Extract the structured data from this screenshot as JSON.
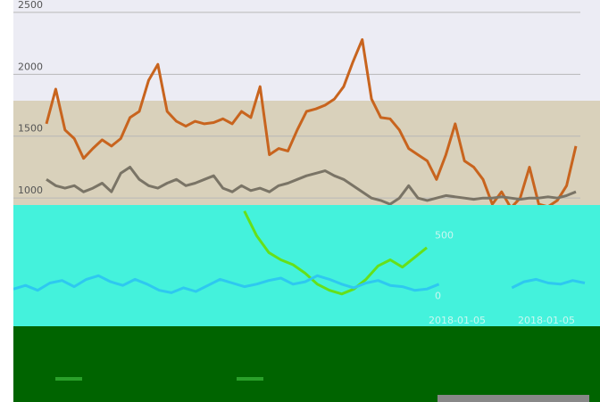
{
  "chart_data": [
    {
      "type": "line",
      "ylim": [
        850,
        2600
      ],
      "yticks": [
        1000,
        1500,
        2000,
        2500
      ],
      "grid": true,
      "series": [
        {
          "color": "#c8641e",
          "values": [
            1600,
            1880,
            1550,
            1480,
            1320,
            1400,
            1470,
            1420,
            1480,
            1650,
            1700,
            1950,
            2080,
            1700,
            1620,
            1580,
            1620,
            1600,
            1610,
            1640,
            1600,
            1700,
            1650,
            1900,
            1350,
            1400,
            1380,
            1550,
            1700,
            1720,
            1750,
            1800,
            1900,
            2100,
            2280,
            1800,
            1650,
            1640,
            1550,
            1400,
            1350,
            1300,
            1150,
            1350,
            1600,
            1300,
            1250,
            1150,
            950,
            1050,
            920,
            1000,
            1250,
            950,
            930,
            980,
            1100,
            1420
          ]
        },
        {
          "color": "#7a7466",
          "values": [
            1150,
            1100,
            1080,
            1100,
            1050,
            1080,
            1120,
            1050,
            1200,
            1250,
            1150,
            1100,
            1080,
            1120,
            1150,
            1100,
            1120,
            1150,
            1180,
            1080,
            1050,
            1100,
            1060,
            1080,
            1050,
            1100,
            1120,
            1150,
            1180,
            1200,
            1220,
            1180,
            1150,
            1100,
            1050,
            1000,
            980,
            950,
            1000,
            1100,
            1000,
            980,
            1000,
            1020,
            1010,
            1000,
            990,
            1000,
            1000,
            1010,
            1000,
            990,
            1000,
            1000,
            1010,
            1000,
            1020,
            1050
          ]
        }
      ]
    },
    {
      "type": "line",
      "ylim": [
        -185,
        810
      ],
      "yticks": [
        0,
        500
      ],
      "x_labels": [
        "2018-01-05",
        "2018-01-05"
      ],
      "series": [
        {
          "color": "#66e01a",
          "values": [
            null,
            null,
            null,
            null,
            null,
            null,
            null,
            null,
            null,
            null,
            null,
            null,
            null,
            null,
            null,
            null,
            null,
            null,
            null,
            760,
            560,
            420,
            360,
            320,
            250,
            160,
            110,
            80,
            120,
            200,
            310,
            360,
            300,
            380,
            460,
            null,
            null,
            null,
            null,
            null,
            null,
            null,
            null,
            null,
            null,
            null,
            null,
            null
          ]
        },
        {
          "color": "#2ec8f0",
          "values": [
            120,
            150,
            110,
            170,
            190,
            140,
            200,
            230,
            180,
            150,
            200,
            160,
            110,
            90,
            130,
            100,
            150,
            200,
            170,
            140,
            160,
            190,
            210,
            160,
            180,
            230,
            200,
            160,
            130,
            170,
            190,
            150,
            140,
            110,
            120,
            160,
            null,
            null,
            null,
            null,
            null,
            130,
            180,
            200,
            170,
            160,
            190,
            170
          ]
        }
      ]
    }
  ]
}
